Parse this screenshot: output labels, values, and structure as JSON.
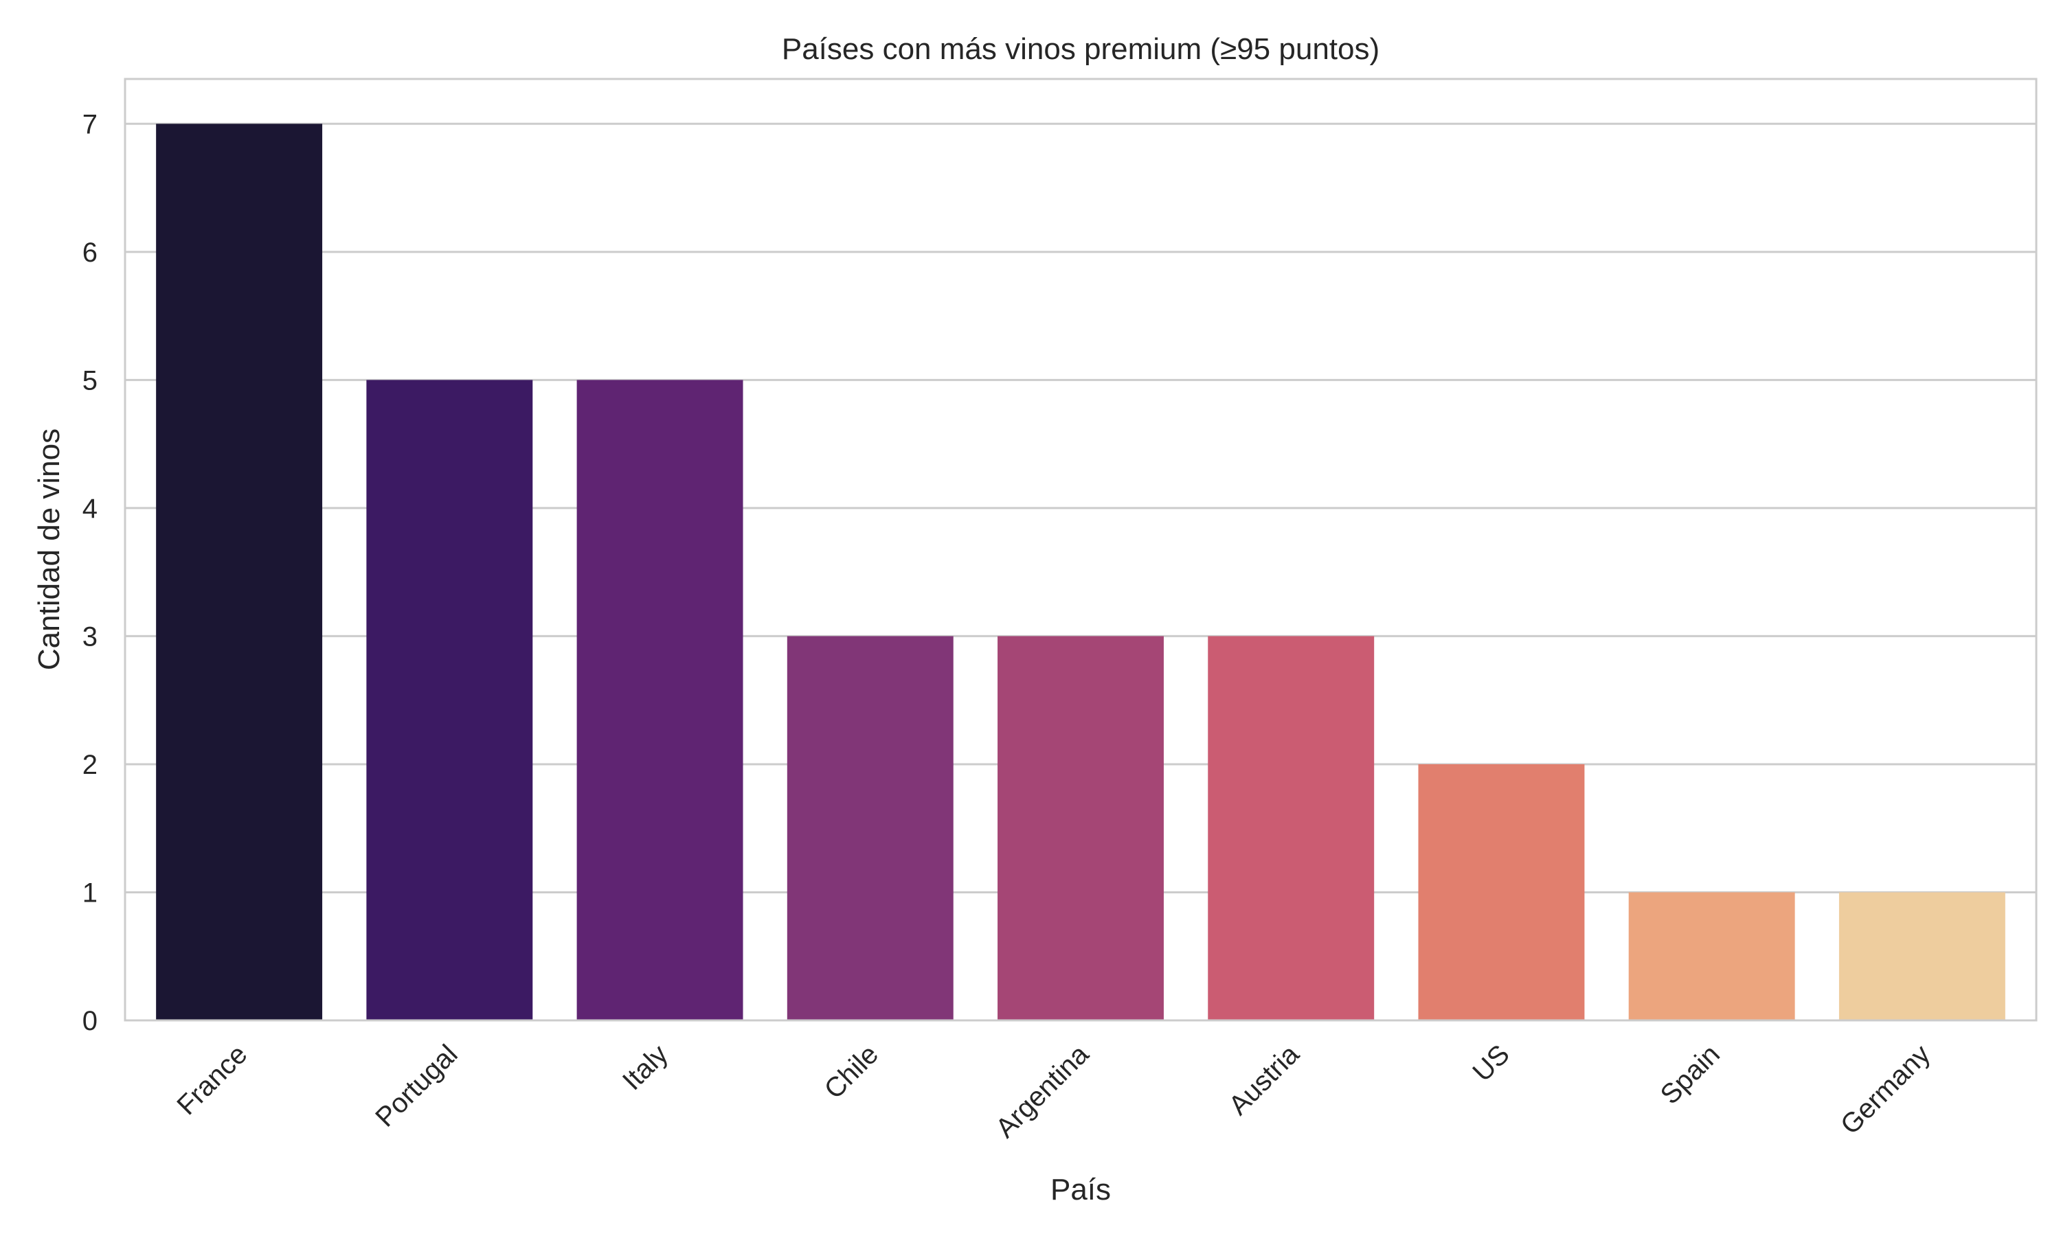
{
  "chart_data": {
    "type": "bar",
    "title": "Países con más vinos premium (≥95 puntos)",
    "xlabel": "País",
    "ylabel": "Cantidad de vinos",
    "categories": [
      "France",
      "Portugal",
      "Italy",
      "Chile",
      "Argentina",
      "Austria",
      "US",
      "Spain",
      "Germany"
    ],
    "values": [
      7,
      5,
      5,
      3,
      3,
      3,
      2,
      1,
      1
    ],
    "colors": [
      "#1b1633",
      "#3c1a63",
      "#5f2472",
      "#813677",
      "#a54675",
      "#cb5c72",
      "#e17f6e",
      "#eca57e",
      "#eecd9e"
    ],
    "yticks": [
      0,
      1,
      2,
      3,
      4,
      5,
      6,
      7
    ],
    "ylim": [
      0,
      7.35
    ],
    "grid": true,
    "xtick_rotation": -45
  }
}
